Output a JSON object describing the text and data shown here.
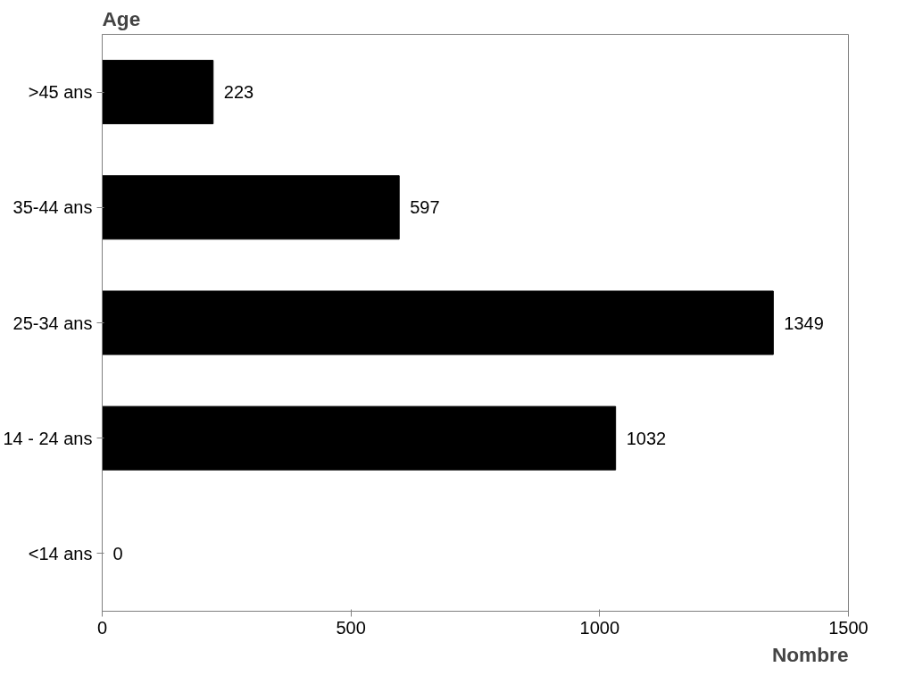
{
  "chart_data": {
    "type": "bar",
    "orientation": "horizontal",
    "xlabel": "Nombre",
    "ylabel": "Age",
    "categories": [
      ">45 ans",
      "35-44 ans",
      "25-34 ans",
      "14 - 24 ans",
      "<14 ans"
    ],
    "values": [
      223,
      597,
      1349,
      1032,
      0
    ],
    "color": "#000000",
    "xlim": [
      0,
      1500
    ],
    "xticks": [
      0,
      500,
      1000,
      1500
    ],
    "grid": false,
    "data_labels": true
  }
}
